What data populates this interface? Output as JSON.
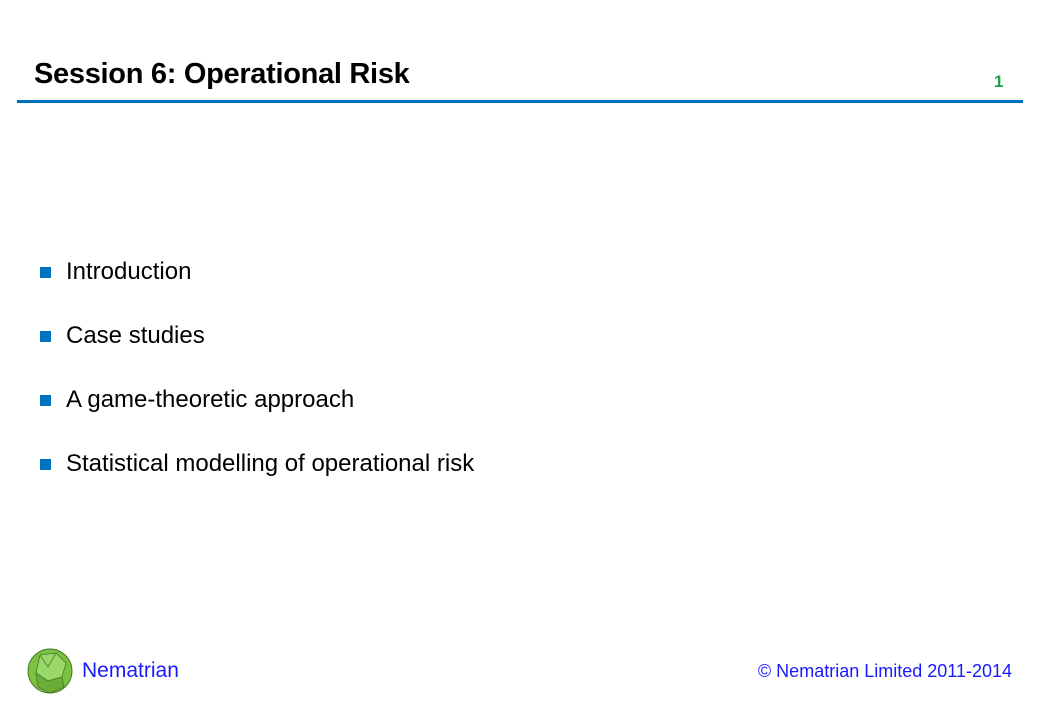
{
  "slide": {
    "title": "Session 6: Operational Risk",
    "page_number": "1",
    "bullets": [
      "Introduction",
      "Case studies",
      "A game-theoretic approach",
      "Statistical modelling of operational risk"
    ]
  },
  "footer": {
    "brand": "Nematrian",
    "copyright": "© Nematrian Limited 2011-2014"
  },
  "colors": {
    "accent": "#0070c0",
    "page_number": "#22a04a",
    "footer_text": "#1a1aff"
  }
}
